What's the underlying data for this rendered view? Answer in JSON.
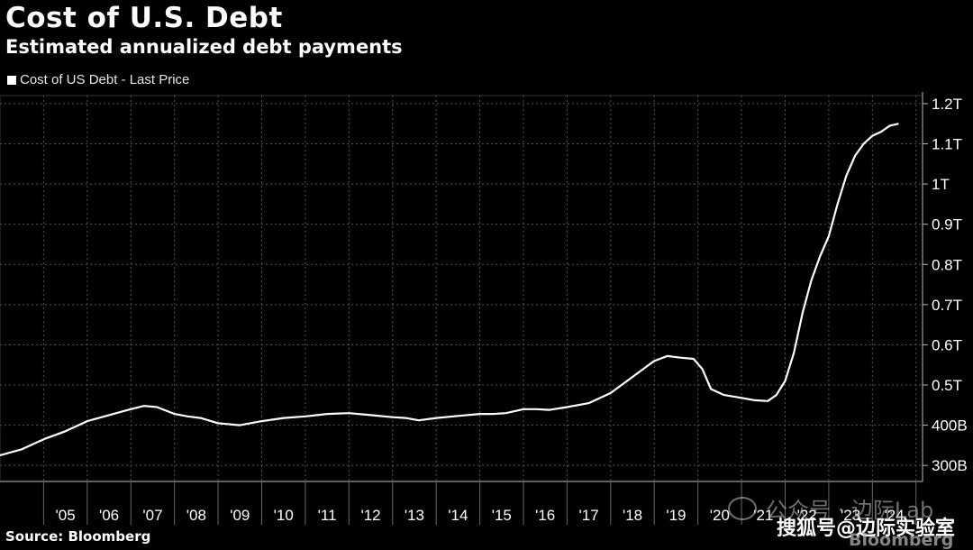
{
  "header": {
    "title": "Cost of U.S. Debt",
    "subtitle": "Estimated annualized debt payments"
  },
  "legend": {
    "label": "Cost of US Debt - Last Price"
  },
  "footer": {
    "source": "Source: Bloomberg"
  },
  "watermark": {
    "text": "公众号 · 边际Lab",
    "overlay": "搜狐号@边际实验室",
    "brand": "Bloomberg"
  },
  "colors": {
    "background": "#000000",
    "line": "#ffffff",
    "grid": "#555555"
  },
  "chart_data": {
    "type": "line",
    "title": "Cost of U.S. Debt",
    "subtitle": "Estimated annualized debt payments",
    "xlabel": "",
    "ylabel": "",
    "grid": true,
    "legend_position": "top-left",
    "y_axis_side": "right",
    "ylim": [
      0.26,
      1.22
    ],
    "ytick_values": [
      0.3,
      0.4,
      0.5,
      0.6,
      0.7,
      0.8,
      0.9,
      1.0,
      1.1,
      1.2
    ],
    "ytick_labels": [
      "300B",
      "400B",
      "0.5T",
      "0.6T",
      "0.7T",
      "0.8T",
      "0.9T",
      "1T",
      "1.1T",
      "1.2T"
    ],
    "xlim": [
      2004.0,
      2025.15
    ],
    "xtick_labels": [
      "'05",
      "'06",
      "'07",
      "'08",
      "'09",
      "'10",
      "'11",
      "'12",
      "'13",
      "'14",
      "'15",
      "'16",
      "'17",
      "'18",
      "'19",
      "'20",
      "'21",
      "'22",
      "'23",
      "'24"
    ],
    "xtick_centers": [
      2005.5,
      2006.5,
      2007.5,
      2008.5,
      2009.5,
      2010.5,
      2011.5,
      2012.5,
      2013.5,
      2014.5,
      2015.5,
      2016.5,
      2017.5,
      2018.5,
      2019.5,
      2020.5,
      2021.5,
      2022.5,
      2023.5,
      2024.5
    ],
    "series": [
      {
        "name": "Cost of US Debt - Last Price",
        "x": [
          2004.0,
          2004.5,
          2005.0,
          2005.5,
          2006.0,
          2006.5,
          2007.0,
          2007.3,
          2007.6,
          2008.0,
          2008.3,
          2008.6,
          2009.0,
          2009.5,
          2010.0,
          2010.5,
          2011.0,
          2011.5,
          2012.0,
          2012.5,
          2013.0,
          2013.3,
          2013.6,
          2014.0,
          2014.5,
          2015.0,
          2015.3,
          2015.6,
          2016.0,
          2016.3,
          2016.6,
          2017.0,
          2017.5,
          2018.0,
          2018.5,
          2019.0,
          2019.3,
          2019.6,
          2019.9,
          2020.1,
          2020.3,
          2020.6,
          2021.0,
          2021.3,
          2021.6,
          2021.8,
          2022.0,
          2022.2,
          2022.4,
          2022.6,
          2022.8,
          2023.0,
          2023.2,
          2023.4,
          2023.6,
          2023.8,
          2024.0,
          2024.2,
          2024.4,
          2024.6
        ],
        "y": [
          0.325,
          0.34,
          0.365,
          0.385,
          0.41,
          0.425,
          0.44,
          0.448,
          0.445,
          0.428,
          0.422,
          0.418,
          0.405,
          0.4,
          0.41,
          0.418,
          0.422,
          0.428,
          0.43,
          0.425,
          0.42,
          0.418,
          0.412,
          0.418,
          0.423,
          0.428,
          0.428,
          0.43,
          0.44,
          0.44,
          0.438,
          0.445,
          0.455,
          0.48,
          0.52,
          0.56,
          0.572,
          0.568,
          0.565,
          0.54,
          0.49,
          0.475,
          0.468,
          0.462,
          0.46,
          0.475,
          0.51,
          0.58,
          0.68,
          0.76,
          0.82,
          0.87,
          0.95,
          1.02,
          1.07,
          1.1,
          1.12,
          1.13,
          1.145,
          1.15
        ]
      }
    ]
  }
}
